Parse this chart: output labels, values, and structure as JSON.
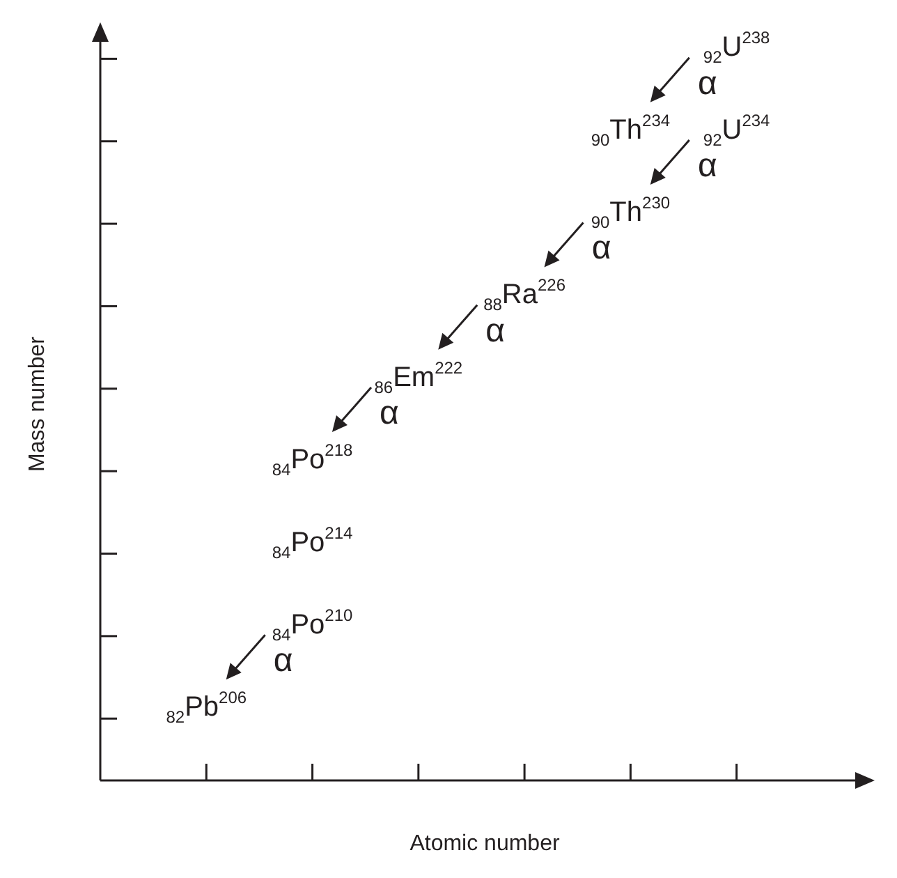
{
  "chart_data": {
    "type": "other",
    "xlabel": "Atomic number",
    "ylabel": "Mass number",
    "values": [
      238,
      234,
      234,
      230,
      226,
      222,
      218,
      214,
      210,
      206
    ],
    "value_labels": [
      "$_{92}$U$^{238}$",
      "$_{90}$Th$^{234}$",
      "$_{92}$U$^{234}$",
      "$_{90}$Th$^{230}$",
      "$_{88}$Ra$^{226}$",
      "$_{86}$Em$^{222}$",
      "$_{84}$Po$^{218}$",
      "$_{84}$Po$^{214}$",
      "$_{84}$Po$^{210}$",
      "$_{82}$Pb$^{206}$"
    ],
    "annotations": [
      "α",
      "α",
      "α",
      "α",
      "α",
      "α"
    ]
  }
}
